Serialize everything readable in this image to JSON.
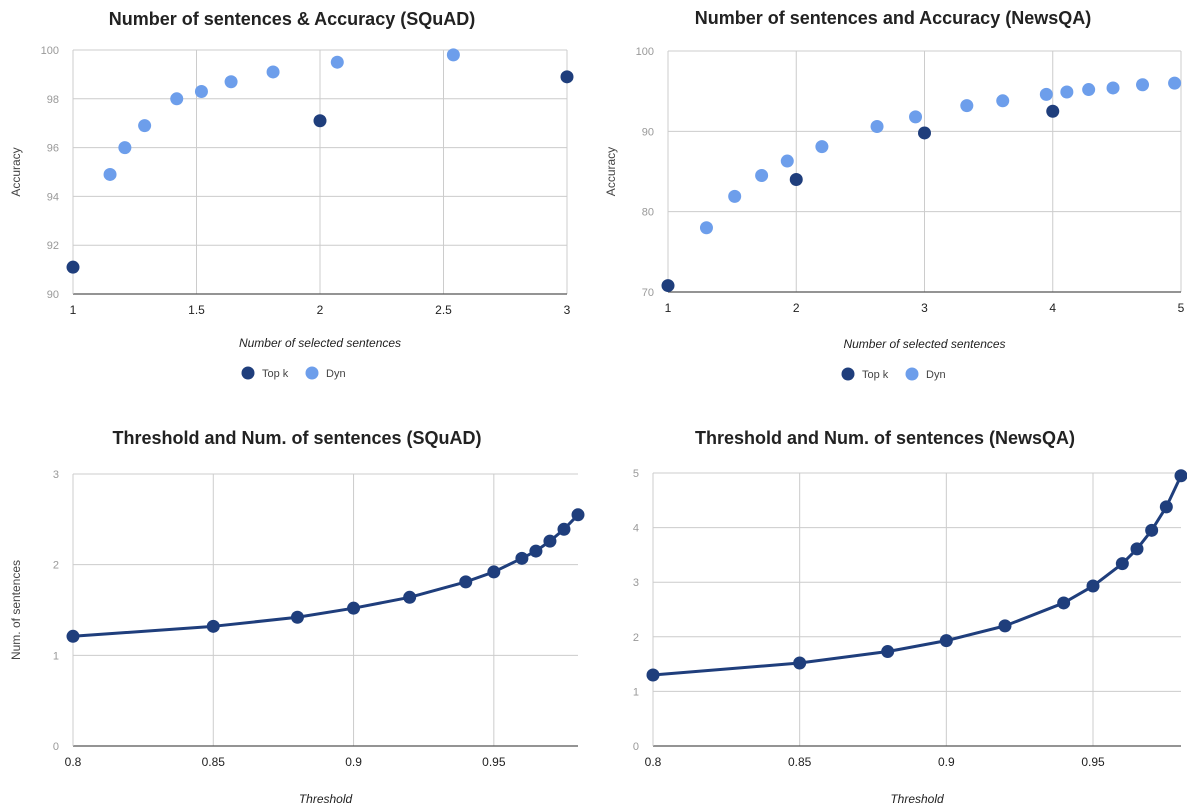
{
  "colors": {
    "topk": "#1f3e7c",
    "dyn": "#6d9eeb",
    "grid": "#cccccc",
    "axis": "#555555",
    "text": "#222222",
    "tick": "#999999"
  },
  "chart_data": [
    {
      "type": "scatter",
      "title": "Number of sentences & Accuracy (SQuAD)",
      "xlabel": "Number of selected sentences",
      "ylabel": "Accuracy",
      "xlim": [
        1,
        3
      ],
      "ylim": [
        90,
        100
      ],
      "xticks": [
        "1",
        "1.5",
        "2",
        "2.5",
        "3"
      ],
      "yticks": [
        "90",
        "92",
        "94",
        "96",
        "98",
        "100"
      ],
      "grid": true,
      "legend": "bottom",
      "series": [
        {
          "name": "Top k",
          "color": "topk",
          "points": [
            [
              1,
              91.1
            ],
            [
              2,
              97.1
            ],
            [
              3,
              98.9
            ]
          ]
        },
        {
          "name": "Dyn",
          "color": "dyn",
          "points": [
            [
              1.15,
              94.9
            ],
            [
              1.21,
              96.0
            ],
            [
              1.29,
              96.9
            ],
            [
              1.42,
              98.0
            ],
            [
              1.52,
              98.3
            ],
            [
              1.64,
              98.7
            ],
            [
              1.81,
              99.1
            ],
            [
              2.07,
              99.5
            ],
            [
              2.54,
              99.8
            ]
          ]
        }
      ]
    },
    {
      "type": "scatter",
      "title": "Number of sentences and Accuracy (NewsQA)",
      "xlabel": "Number of selected sentences",
      "ylabel": "Accuracy",
      "xlim": [
        1,
        5
      ],
      "ylim": [
        70,
        100
      ],
      "xticks": [
        "1",
        "2",
        "3",
        "4",
        "5"
      ],
      "yticks": [
        "70",
        "80",
        "90",
        "100"
      ],
      "grid": true,
      "legend": "bottom",
      "series": [
        {
          "name": "Top k",
          "color": "topk",
          "points": [
            [
              1,
              70.8
            ],
            [
              2,
              84.0
            ],
            [
              3,
              89.8
            ],
            [
              4,
              92.5
            ]
          ]
        },
        {
          "name": "Dyn",
          "color": "dyn",
          "points": [
            [
              1.3,
              78.0
            ],
            [
              1.52,
              81.9
            ],
            [
              1.73,
              84.5
            ],
            [
              1.93,
              86.3
            ],
            [
              2.2,
              88.1
            ],
            [
              2.63,
              90.6
            ],
            [
              2.93,
              91.8
            ],
            [
              3.33,
              93.2
            ],
            [
              3.61,
              93.8
            ],
            [
              3.95,
              94.6
            ],
            [
              4.11,
              94.9
            ],
            [
              4.28,
              95.2
            ],
            [
              4.47,
              95.4
            ],
            [
              4.7,
              95.8
            ],
            [
              4.95,
              96.0
            ]
          ]
        }
      ]
    },
    {
      "type": "line",
      "title": "Threshold and Num. of sentences (SQuAD)",
      "xlabel": "Threshold",
      "ylabel": "Num. of sentences",
      "xlim": [
        0.8,
        0.98
      ],
      "ylim": [
        0,
        3
      ],
      "xticks": [
        "0.8",
        "0.85",
        "0.9",
        "0.95"
      ],
      "yticks": [
        "0",
        "1",
        "2",
        "3"
      ],
      "grid": true,
      "legend": "none",
      "series": [
        {
          "color": "topk",
          "points": [
            [
              0.8,
              1.21
            ],
            [
              0.85,
              1.32
            ],
            [
              0.88,
              1.42
            ],
            [
              0.9,
              1.52
            ],
            [
              0.92,
              1.64
            ],
            [
              0.94,
              1.81
            ],
            [
              0.95,
              1.92
            ],
            [
              0.96,
              2.07
            ],
            [
              0.965,
              2.15
            ],
            [
              0.97,
              2.26
            ],
            [
              0.975,
              2.39
            ],
            [
              0.98,
              2.55
            ]
          ]
        }
      ]
    },
    {
      "type": "line",
      "title": "Threshold and Num. of sentences (NewsQA)",
      "xlabel": "Threshold",
      "ylabel": "",
      "xlim": [
        0.8,
        0.98
      ],
      "ylim": [
        0,
        5
      ],
      "xticks": [
        "0.8",
        "0.85",
        "0.9",
        "0.95"
      ],
      "yticks": [
        "0",
        "1",
        "2",
        "3",
        "4",
        "5"
      ],
      "grid": true,
      "legend": "none",
      "series": [
        {
          "color": "topk",
          "points": [
            [
              0.8,
              1.3
            ],
            [
              0.85,
              1.52
            ],
            [
              0.88,
              1.73
            ],
            [
              0.9,
              1.93
            ],
            [
              0.92,
              2.2
            ],
            [
              0.94,
              2.62
            ],
            [
              0.95,
              2.93
            ],
            [
              0.96,
              3.34
            ],
            [
              0.965,
              3.61
            ],
            [
              0.97,
              3.95
            ],
            [
              0.975,
              4.38
            ],
            [
              0.98,
              4.95
            ]
          ]
        }
      ]
    }
  ]
}
